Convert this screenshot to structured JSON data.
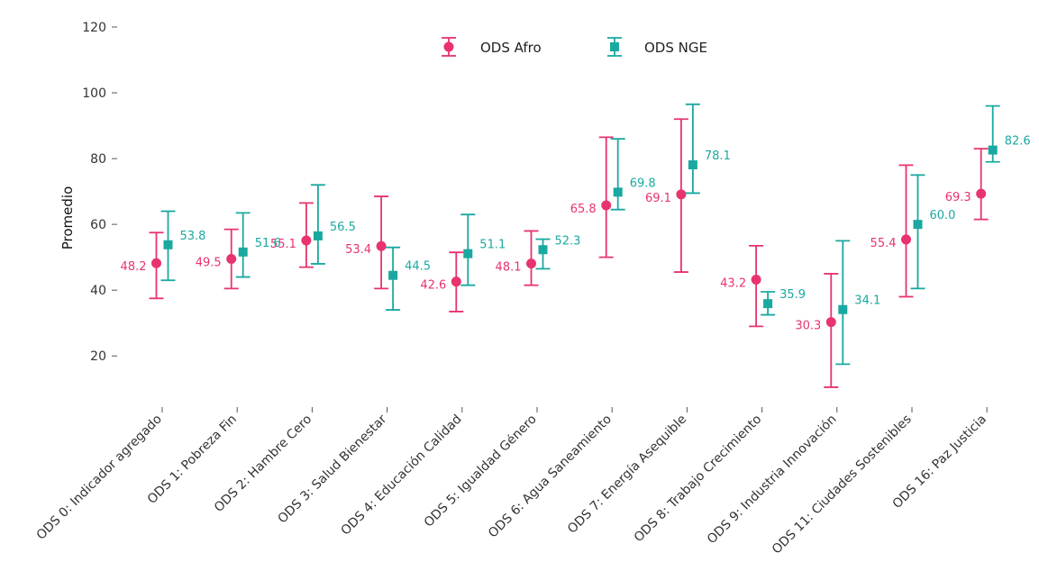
{
  "chart_data": {
    "type": "errorbar",
    "title": "",
    "xlabel": "",
    "ylabel": "Promedio",
    "ylim": [
      5,
      120
    ],
    "yticks": [
      20,
      40,
      60,
      80,
      100,
      120
    ],
    "grid": false,
    "legend_placement": "top-center",
    "categories": [
      "ODS 0: Indicador agregado",
      "ODS 1: Pobreza Fin",
      "ODS 2: Hambre Cero",
      "ODS 3: Salud Bienestar",
      "ODS 4: Educación Calidad",
      "ODS 5: Igualdad Género",
      "ODS 6: Agua Saneamiento",
      "ODS 7: Energía Asequible",
      "ODS 8: Trabajo Crecimiento",
      "ODS 9: Industria Innovación",
      "ODS 11: Ciudades Sostenibles",
      "ODS 16: Paz Justicia"
    ],
    "series": [
      {
        "name": "ODS Afro",
        "color": "#e8336f",
        "marker": "circle",
        "values": [
          48.2,
          49.5,
          55.1,
          53.4,
          42.6,
          48.1,
          65.8,
          69.1,
          43.2,
          30.3,
          55.4,
          69.3
        ],
        "labels": [
          "48.2",
          "49.5",
          "55.1",
          "53.4",
          "42.6",
          "48.1",
          "65.8",
          "69.1",
          "43.2",
          "30.3",
          "55.4",
          "69.3"
        ],
        "lower": [
          37.5,
          40.5,
          47,
          40.5,
          33.5,
          41.5,
          50,
          45.5,
          29,
          10.5,
          38,
          61.5
        ],
        "upper": [
          57.5,
          58.5,
          66.5,
          68.5,
          51.5,
          58,
          86.5,
          92,
          53.5,
          45,
          78,
          83
        ]
      },
      {
        "name": "ODS NGE",
        "color": "#1aa9a0",
        "marker": "square",
        "values": [
          53.8,
          51.6,
          56.5,
          44.5,
          51.1,
          52.3,
          69.8,
          78.1,
          35.9,
          34.1,
          60.0,
          82.6
        ],
        "labels": [
          "53.8",
          "51.6",
          "56.5",
          "44.5",
          "51.1",
          "52.3",
          "69.8",
          "78.1",
          "35.9",
          "34.1",
          "60.0",
          "82.6"
        ],
        "lower": [
          43,
          44,
          48,
          34,
          41.5,
          46.5,
          64.5,
          69.5,
          32.5,
          17.5,
          40.5,
          79
        ],
        "upper": [
          64,
          63.5,
          72,
          53,
          63,
          55.5,
          86,
          96.5,
          39.5,
          55,
          75,
          96
        ]
      }
    ]
  }
}
